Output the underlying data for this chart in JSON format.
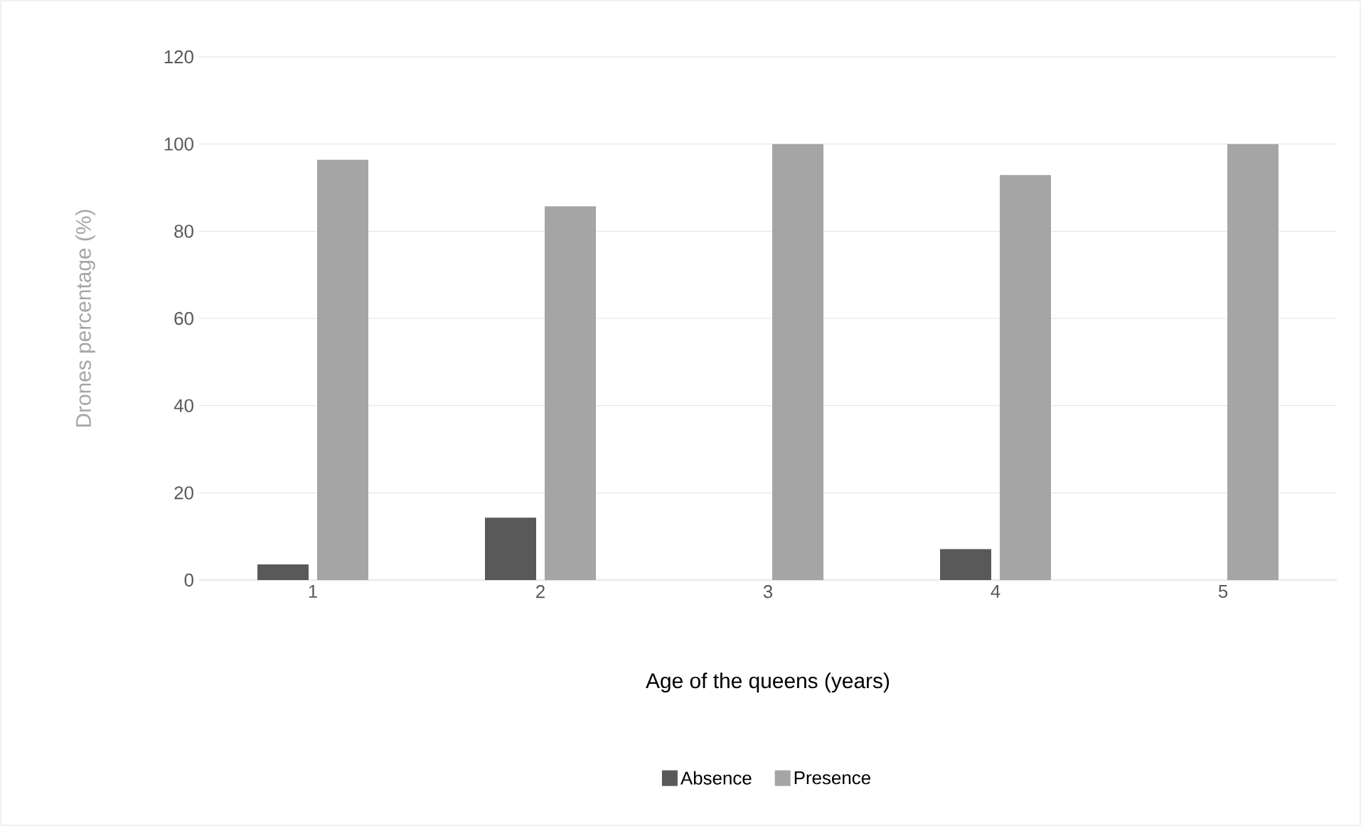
{
  "chart_data": {
    "type": "bar",
    "xlabel": "Age of the queens (years)",
    "ylabel": "Drones   percentage (%)",
    "categories": [
      "1",
      "2",
      "3",
      "4",
      "5"
    ],
    "series": [
      {
        "name": "Absence",
        "color": "#595959",
        "values": [
          3.6,
          14.3,
          0,
          7.1,
          0
        ]
      },
      {
        "name": "Presence",
        "color": "#a5a5a5",
        "values": [
          96.4,
          85.7,
          100,
          92.9,
          100
        ]
      }
    ],
    "ylim": [
      0,
      120
    ],
    "yticks": [
      0,
      20,
      40,
      60,
      80,
      100,
      120
    ],
    "grid": "y",
    "legend": "bottom"
  }
}
